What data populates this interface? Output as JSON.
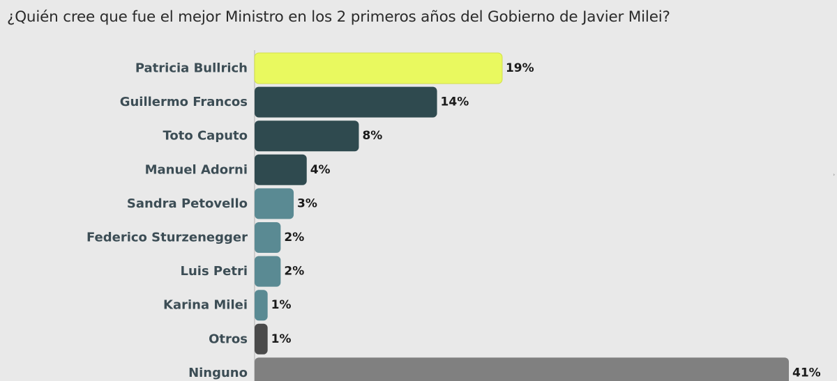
{
  "title": "¿Quién cree que fue el mejor Ministro en los 2 primeros años del Gobierno de Javier Milei?",
  "chart_data": {
    "type": "bar",
    "orientation": "horizontal",
    "title": "¿Quién cree que fue el mejor Ministro en los 2 primeros años del Gobierno de Javier Milei?",
    "xlabel": "",
    "ylabel": "",
    "grid": false,
    "legend": "none",
    "categories": [
      "Patricia Bullrich",
      "Guillermo Francos",
      "Toto Caputo",
      "Manuel Adorni",
      "Sandra Petovello",
      "Federico Sturzenegger",
      "Luis Petri",
      "Karina Milei",
      "Otros",
      "Ninguno"
    ],
    "values": [
      19,
      14,
      8,
      4,
      3,
      2,
      2,
      1,
      1,
      41
    ],
    "value_labels": [
      "19%",
      "14%",
      "8%",
      "4%",
      "3%",
      "2%",
      "2%",
      "1%",
      "1%",
      "41%"
    ],
    "colors": [
      "#e9f95f",
      "#2f4a4f",
      "#2f4a4f",
      "#2f4a4f",
      "#5a8a93",
      "#5a8a93",
      "#5a8a93",
      "#5a8a93",
      "#4a4a4a",
      "#808080"
    ],
    "xlim": [
      0,
      41
    ]
  }
}
